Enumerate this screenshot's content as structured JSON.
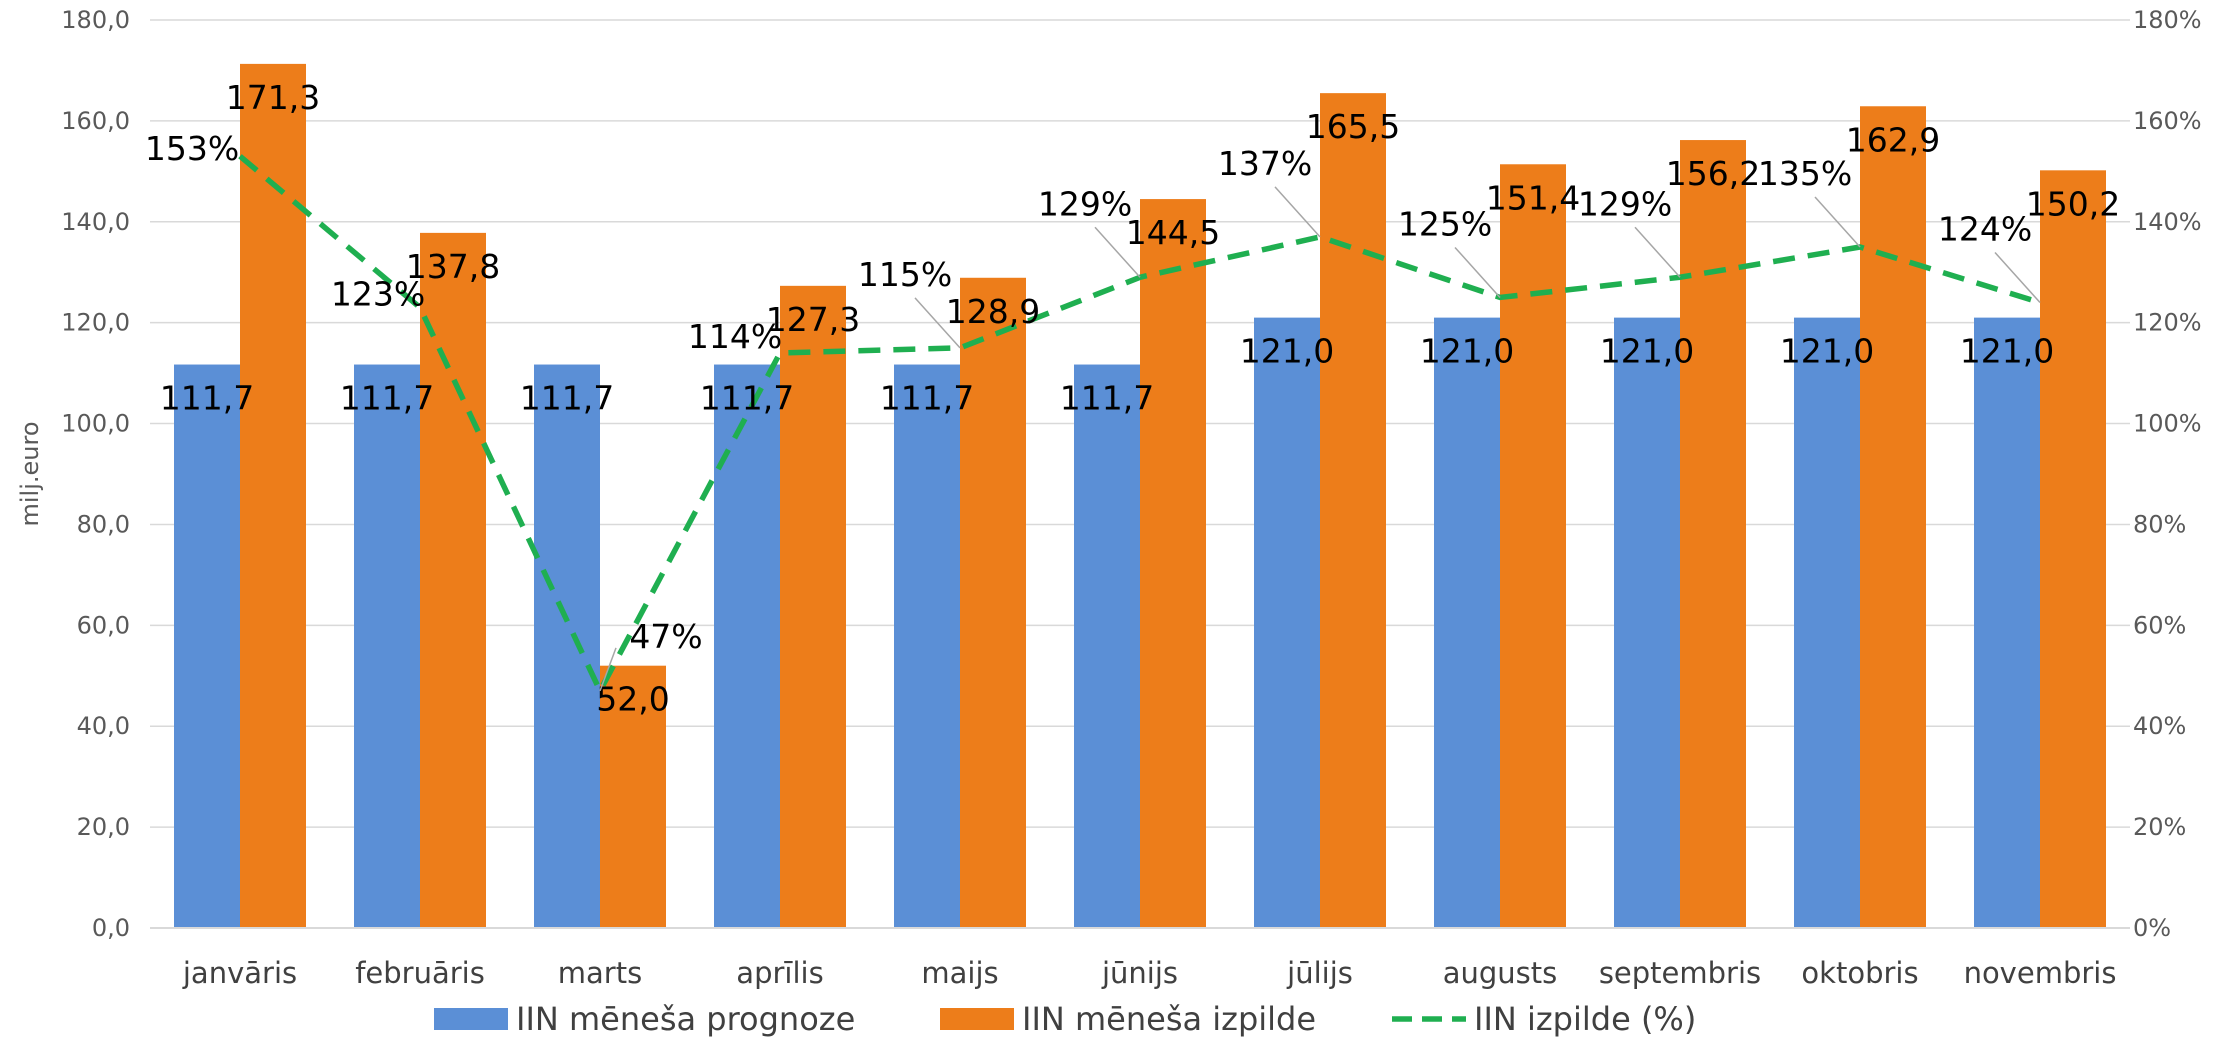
{
  "chart_data": {
    "type": "bar",
    "categories": [
      "janvāris",
      "februāris",
      "marts",
      "aprīlis",
      "maijs",
      "jūnijs",
      "jūlijs",
      "augusts",
      "septembris",
      "oktobris",
      "novembris"
    ],
    "series": [
      {
        "name": "IIN mēneša prognoze",
        "type": "bar",
        "axis": "left",
        "color": "#5B8FD6",
        "values": [
          111.7,
          111.7,
          111.7,
          111.7,
          111.7,
          111.7,
          121.0,
          121.0,
          121.0,
          121.0,
          121.0
        ],
        "labels": [
          "111,7",
          "111,7",
          "111,7",
          "111,7",
          "111,7",
          "111,7",
          "121,0",
          "121,0",
          "121,0",
          "121,0",
          "121,0"
        ]
      },
      {
        "name": "IIN mēneša izpilde",
        "type": "bar",
        "axis": "left",
        "color": "#ED7D1A",
        "values": [
          171.3,
          137.8,
          52.0,
          127.3,
          128.9,
          144.5,
          165.5,
          151.4,
          156.2,
          162.9,
          150.2
        ],
        "labels": [
          "171,3",
          "137,8",
          "52,0",
          "127,3",
          "128,9",
          "144,5",
          "165,5",
          "151,4",
          "156,2",
          "162,9",
          "150,2"
        ]
      },
      {
        "name": "IIN izpilde (%)",
        "type": "line",
        "style": "dashed",
        "axis": "right",
        "color": "#1FAF50",
        "values": [
          153,
          123,
          47,
          114,
          115,
          129,
          137,
          125,
          129,
          135,
          124
        ],
        "labels": [
          "153%",
          "123%",
          "47%",
          "114%",
          "115%",
          "129%",
          "137%",
          "125%",
          "129%",
          "135%",
          "124%"
        ]
      }
    ],
    "ylabel": "milj.euro",
    "ylim": [
      0,
      180
    ],
    "y_ticks": [
      "0,0",
      "20,0",
      "40,0",
      "60,0",
      "80,0",
      "100,0",
      "120,0",
      "140,0",
      "160,0",
      "180,0"
    ],
    "y2lim": [
      0,
      180
    ],
    "y2_ticks": [
      "0%",
      "20%",
      "40%",
      "60%",
      "80%",
      "100%",
      "120%",
      "140%",
      "160%",
      "180%"
    ],
    "grid": true,
    "legend": "bottom"
  }
}
